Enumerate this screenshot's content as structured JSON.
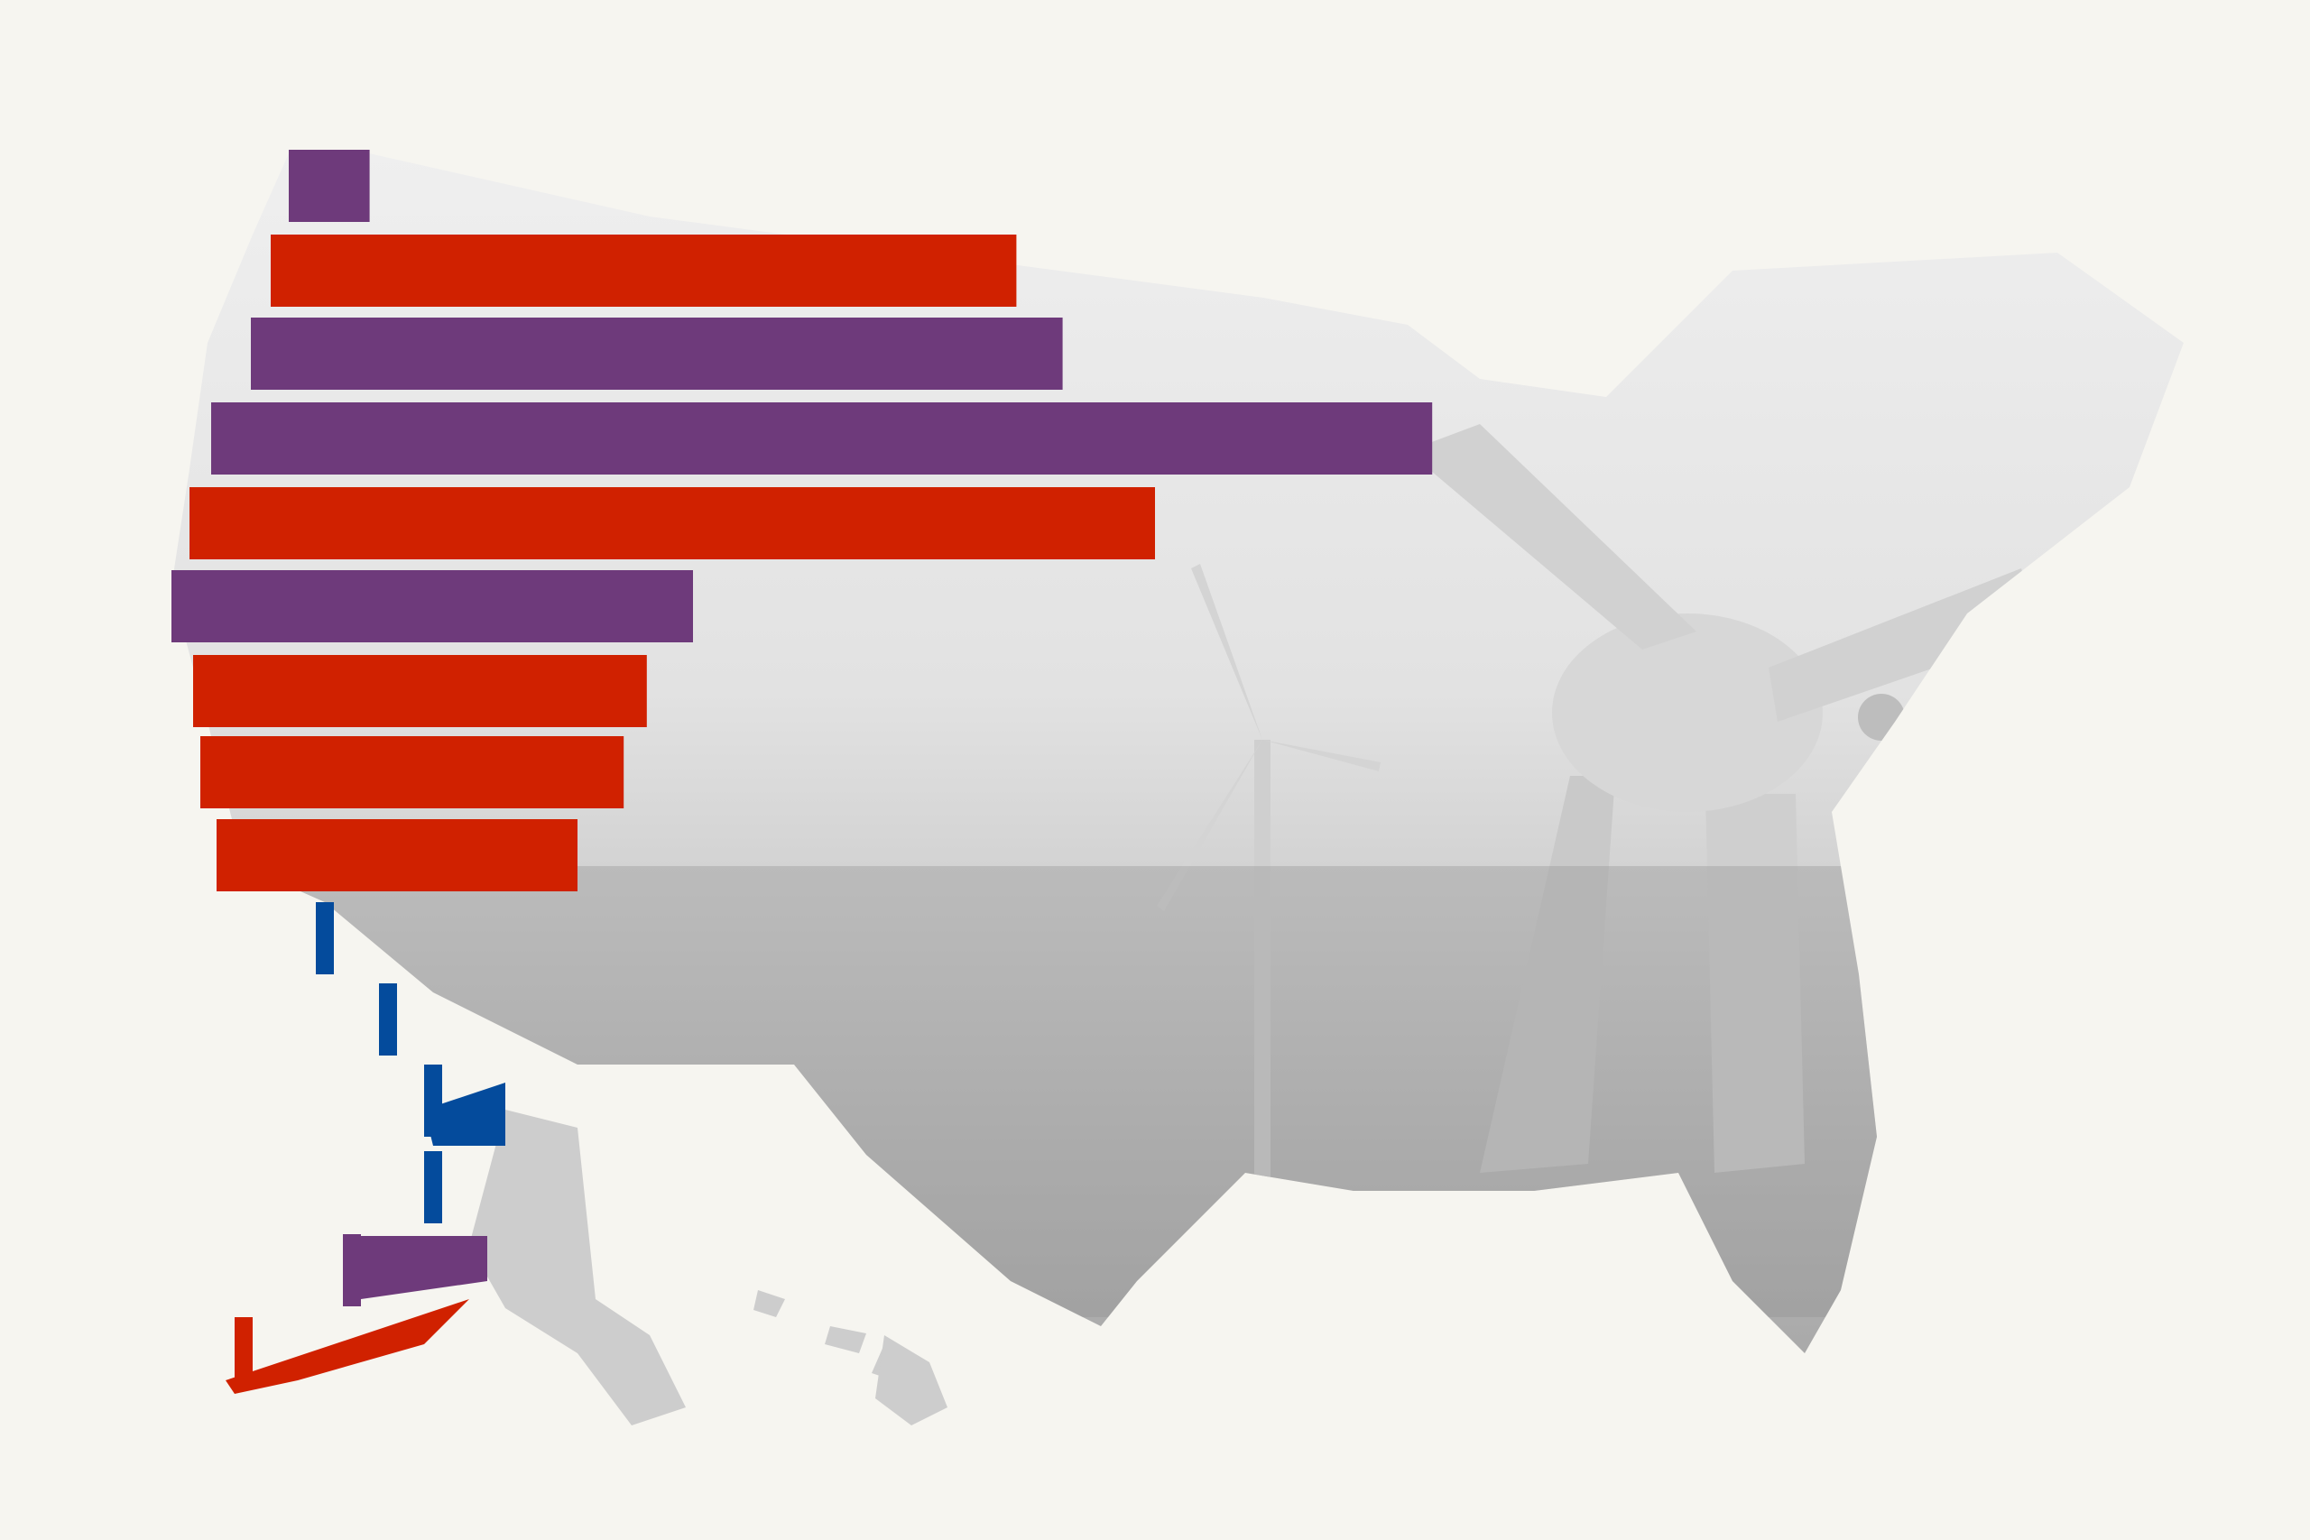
{
  "chart_data": {
    "type": "bar",
    "orientation": "horizontal",
    "title": "",
    "xlabel": "",
    "ylabel": "",
    "grid": false,
    "legend": "none",
    "xlim": [
      0,
      100
    ],
    "series": [
      {
        "values": [
          16,
          44,
          46,
          62,
          50,
          30,
          28,
          27,
          25,
          10,
          4,
          10,
          8,
          6,
          10
        ],
        "colors": [
          "purple",
          "red",
          "purple",
          "purple",
          "red",
          "purple",
          "red",
          "red",
          "red",
          "blue",
          "blue",
          "blue",
          "blue",
          "purple",
          "red"
        ]
      }
    ]
  },
  "colors": {
    "background": "#f6f5f0",
    "red": "#d02100",
    "purple": "#6e3a7b",
    "blue": "#044b9c",
    "map_gray": "#d5d5d5"
  },
  "image_description_icon": "wind-turbine-icon"
}
